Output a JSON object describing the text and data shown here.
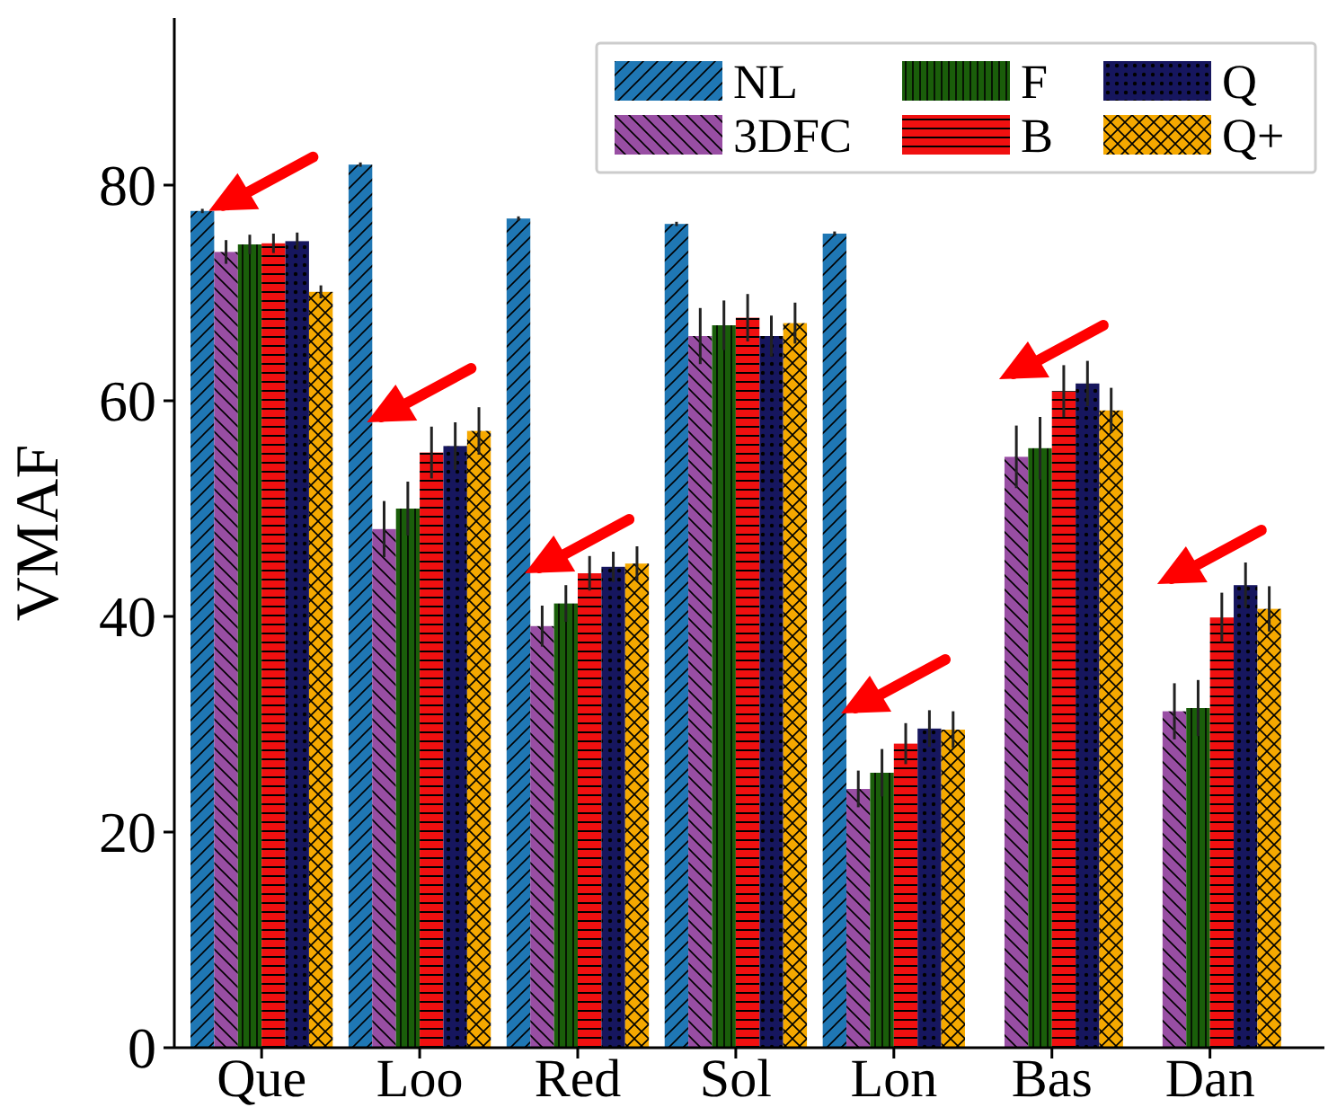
{
  "chart_data": {
    "type": "bar",
    "ylabel": "VMAF",
    "categories": [
      "Que",
      "Loo",
      "Red",
      "Sol",
      "Lon",
      "Bas",
      "Dan"
    ],
    "series": [
      {
        "name": "NL",
        "color": "#1f77b4",
        "values": [
          77.6,
          81.9,
          76.9,
          76.4,
          75.5,
          null,
          null
        ],
        "errors": [
          0.2,
          0.2,
          0.2,
          0.2,
          0.2,
          null,
          null
        ]
      },
      {
        "name": "3DFC",
        "color": "#984ea3",
        "values": [
          73.8,
          48.1,
          39.1,
          66.0,
          24.0,
          54.8,
          31.2
        ],
        "errors": [
          1.1,
          2.6,
          1.9,
          2.6,
          1.7,
          2.9,
          2.6
        ]
      },
      {
        "name": "F",
        "color": "#1a5e0a",
        "values": [
          74.5,
          50.0,
          41.2,
          67.0,
          25.5,
          55.6,
          31.5
        ],
        "errors": [
          0.9,
          2.5,
          1.7,
          2.3,
          2.2,
          2.9,
          2.6
        ]
      },
      {
        "name": "B",
        "color": "#f01010",
        "values": [
          74.6,
          55.2,
          44.0,
          67.7,
          28.2,
          60.9,
          39.9
        ],
        "errors": [
          0.9,
          2.4,
          1.6,
          2.2,
          1.9,
          2.4,
          2.3
        ]
      },
      {
        "name": "Q",
        "color": "#16165e",
        "values": [
          74.8,
          55.8,
          44.6,
          66.0,
          29.6,
          61.6,
          42.9
        ],
        "errors": [
          0.8,
          2.2,
          1.4,
          1.9,
          1.7,
          2.1,
          2.1
        ]
      },
      {
        "name": "Q+",
        "color": "#f5a800",
        "values": [
          70.1,
          57.2,
          44.9,
          67.2,
          29.5,
          59.1,
          40.7
        ],
        "errors": [
          0.6,
          2.2,
          1.6,
          1.9,
          1.7,
          2.1,
          2.1
        ]
      }
    ],
    "ylim": [
      0,
      95.5
    ],
    "yticks": [
      0,
      20,
      40,
      60,
      80
    ],
    "legend": "top right"
  }
}
